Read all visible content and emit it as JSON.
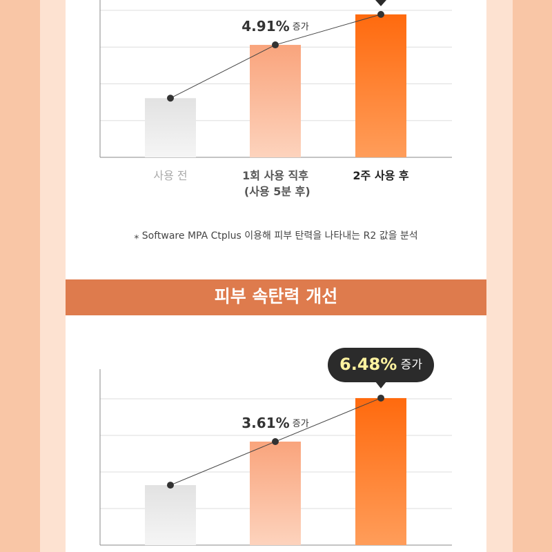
{
  "chart_data": [
    {
      "type": "bar",
      "categories": [
        "사용 전",
        "1회 사용 직후\n(사용 5분 후)",
        "2주 사용 후"
      ],
      "values": [
        1.61,
        3.06,
        3.89
      ],
      "annotations": [
        null,
        {
          "text": "4.91% 증가",
          "style": "plain"
        },
        null
      ],
      "ylim": [
        0,
        5
      ],
      "yticks": [
        1,
        2,
        3,
        4
      ],
      "ytick_labels": false,
      "grid": true,
      "colors": [
        "#e4e4e4",
        "#f9a881",
        "#ff6b12"
      ],
      "note": "⁎ Software MPA Ctplus 이용해 피부 탄력을 나타내는 R2 값을 분석"
    },
    {
      "type": "bar",
      "title": "피부 속탄력 개선",
      "values": [
        1.64,
        2.83,
        4.02
      ],
      "annotations": [
        null,
        {
          "text": "3.61% 증가",
          "style": "plain"
        },
        {
          "text": "6.48% 증가",
          "style": "bubble"
        }
      ],
      "ylim": [
        0,
        5
      ],
      "yticks": [
        1,
        2,
        3,
        4
      ],
      "ytick_labels": false,
      "grid": true,
      "colors": [
        "#e4e4e4",
        "#f9a881",
        "#ff6b12"
      ]
    }
  ]
}
